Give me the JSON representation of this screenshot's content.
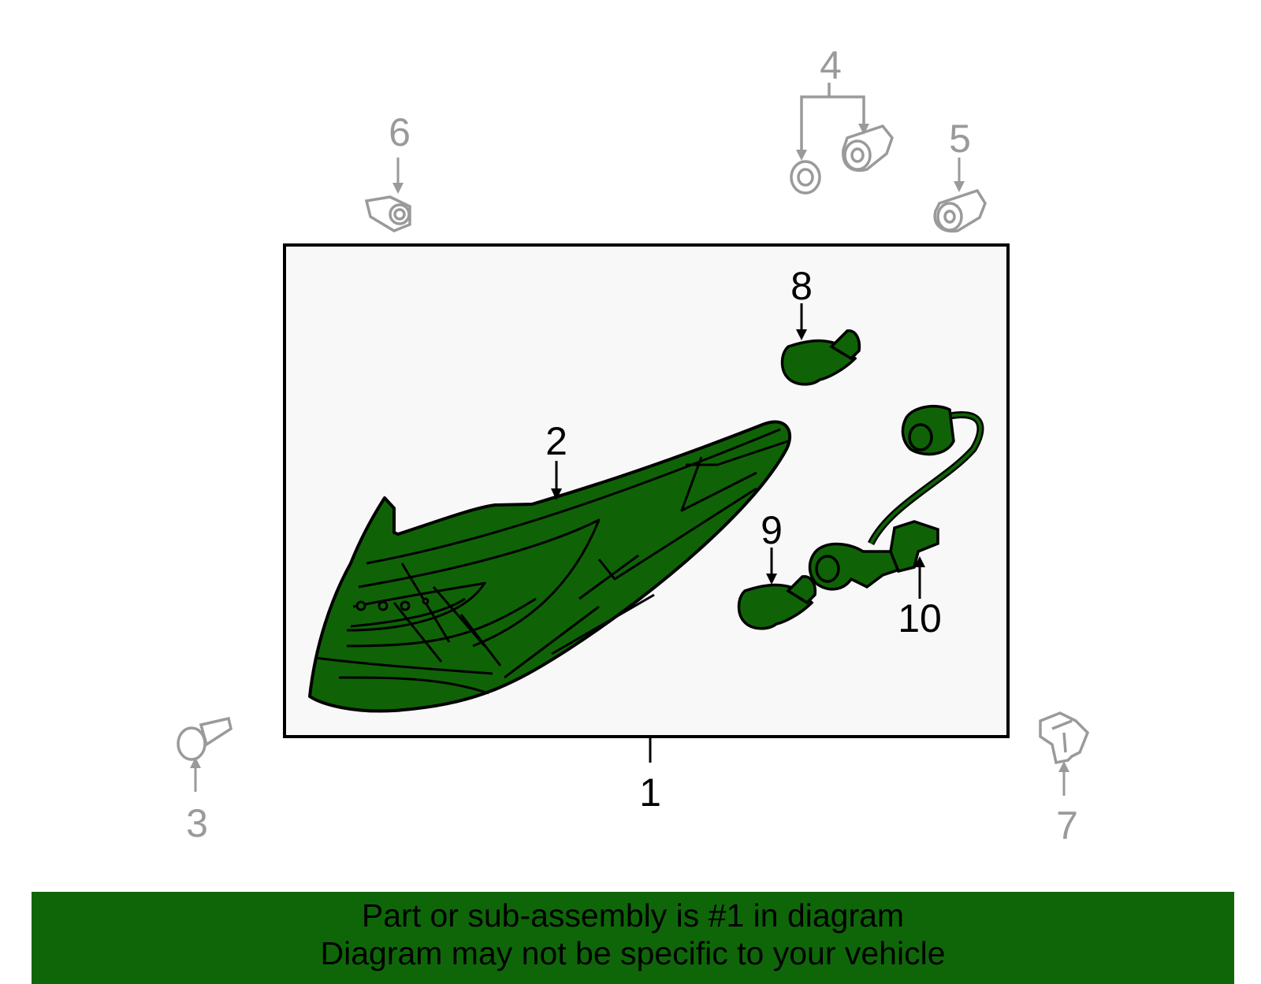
{
  "colors": {
    "part_fill": "#0f6306",
    "banner": "#0f6609",
    "hardware": "#9a9a9a",
    "frame_fill": "#f8f8f8"
  },
  "callouts": [
    {
      "label": "1",
      "part": "tail-lamp-assembly"
    },
    {
      "label": "2",
      "part": "lens-housing"
    },
    {
      "label": "3",
      "part": "screw"
    },
    {
      "label": "4",
      "part": "nut-and-washer"
    },
    {
      "label": "5",
      "part": "nut"
    },
    {
      "label": "6",
      "part": "nut"
    },
    {
      "label": "7",
      "part": "bracket"
    },
    {
      "label": "8",
      "part": "bulb"
    },
    {
      "label": "9",
      "part": "bulb"
    },
    {
      "label": "10",
      "part": "socket-and-wire"
    }
  ],
  "banner": {
    "line1": "Part or sub-assembly is #1 in diagram",
    "line2": "Diagram may not be specific to your vehicle"
  }
}
